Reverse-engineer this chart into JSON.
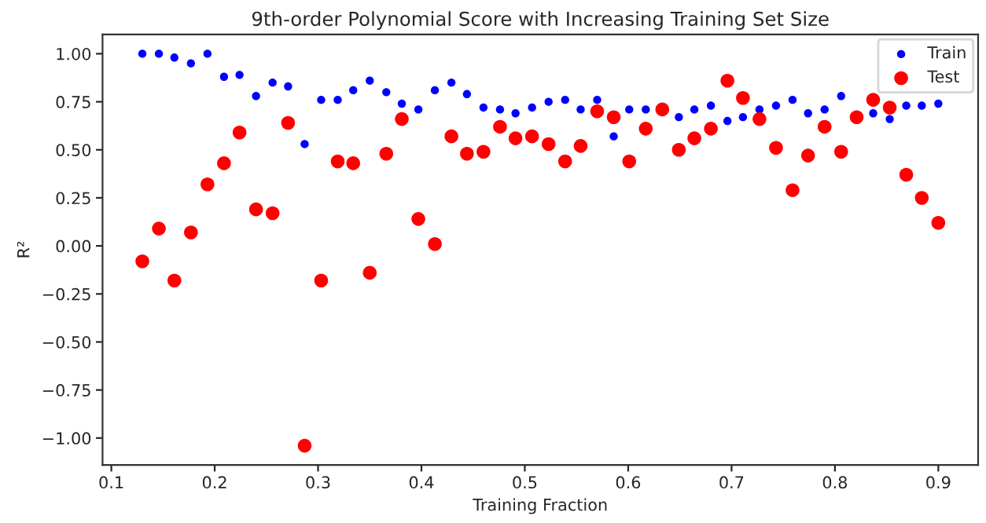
{
  "chart_data": {
    "type": "scatter",
    "title": "9th-order Polynomial Score with Increasing Training Set Size",
    "xlabel": "Training Fraction",
    "ylabel": "R²",
    "x": [
      0.13,
      0.146,
      0.161,
      0.177,
      0.193,
      0.209,
      0.224,
      0.24,
      0.256,
      0.271,
      0.287,
      0.303,
      0.319,
      0.334,
      0.35,
      0.366,
      0.381,
      0.397,
      0.413,
      0.429,
      0.444,
      0.46,
      0.476,
      0.491,
      0.507,
      0.523,
      0.539,
      0.554,
      0.57,
      0.586,
      0.601,
      0.617,
      0.633,
      0.649,
      0.664,
      0.68,
      0.696,
      0.711,
      0.727,
      0.743,
      0.759,
      0.774,
      0.79,
      0.806,
      0.821,
      0.837,
      0.853,
      0.869,
      0.884,
      0.9
    ],
    "series": [
      {
        "name": "Train",
        "color": "#0000ff",
        "values": [
          1.0,
          1.0,
          0.98,
          0.95,
          1.0,
          0.88,
          0.89,
          0.78,
          0.85,
          0.83,
          0.53,
          0.76,
          0.76,
          0.81,
          0.86,
          0.8,
          0.74,
          0.71,
          0.81,
          0.85,
          0.79,
          0.72,
          0.71,
          0.69,
          0.72,
          0.75,
          0.76,
          0.71,
          0.76,
          0.57,
          0.71,
          0.71,
          null,
          0.67,
          0.71,
          0.73,
          0.65,
          0.67,
          0.71,
          0.73,
          0.76,
          0.69,
          0.71,
          0.78,
          null,
          0.69,
          0.66,
          0.73,
          0.73,
          0.74
        ]
      },
      {
        "name": "Test",
        "color": "#ff0000",
        "values": [
          -0.08,
          0.09,
          -0.18,
          0.07,
          0.32,
          0.43,
          0.59,
          0.19,
          0.17,
          0.64,
          -1.04,
          -0.18,
          0.44,
          0.43,
          -0.14,
          0.48,
          0.66,
          0.14,
          0.01,
          0.57,
          0.48,
          0.49,
          0.62,
          0.56,
          0.57,
          0.53,
          0.44,
          0.52,
          0.7,
          0.67,
          0.44,
          0.61,
          0.71,
          0.5,
          0.56,
          0.61,
          0.86,
          0.77,
          0.66,
          0.51,
          0.29,
          0.47,
          0.62,
          0.49,
          0.67,
          0.76,
          0.72,
          0.37,
          0.25,
          0.12
        ]
      }
    ],
    "xlim": [
      0.0915,
      0.9385
    ],
    "ylim": [
      -1.14,
      1.1
    ],
    "xticks": [
      0.1,
      0.2,
      0.3,
      0.4,
      0.5,
      0.6,
      0.7,
      0.8,
      0.9
    ],
    "yticks": [
      {
        "value": -1,
        "label": "−1.00"
      },
      {
        "value": -0.75,
        "label": "−0.75"
      },
      {
        "value": -0.5,
        "label": "−0.50"
      },
      {
        "value": -0.25,
        "label": "−0.25"
      },
      {
        "value": 0,
        "label": "0.00"
      },
      {
        "value": 0.25,
        "label": "0.25"
      },
      {
        "value": 0.5,
        "label": "0.50"
      },
      {
        "value": 0.75,
        "label": "0.75"
      },
      {
        "value": 1,
        "label": "1.00"
      }
    ],
    "marker": "circle",
    "legend": "top right",
    "grid": false
  }
}
